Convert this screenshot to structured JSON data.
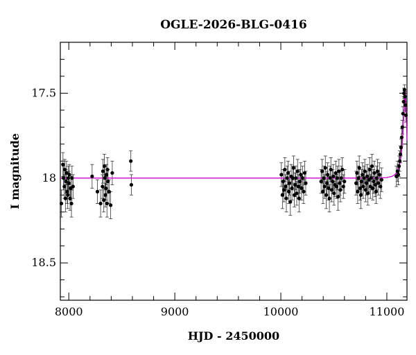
{
  "chart_data": {
    "type": "scatter",
    "title": "OGLE-2026-BLG-0416",
    "xlabel": "HJD - 2450000",
    "ylabel": "I magnitude",
    "xlim": [
      7920,
      11190
    ],
    "ylim": [
      18.72,
      17.2
    ],
    "y_inverted": true,
    "x_ticks": [
      8000,
      9000,
      10000,
      11000
    ],
    "x_tick_labels": [
      "8000",
      "9000",
      "10000",
      "11000"
    ],
    "y_ticks": [
      17.5,
      18,
      18.5
    ],
    "y_tick_labels": [
      "17.5",
      "18",
      "18.5"
    ],
    "grid": false,
    "colors": {
      "data": "#000000",
      "errorbar": "#333333",
      "model": "#cc00cc"
    },
    "series": [
      {
        "kind": "points_with_errors",
        "points": [
          [
            7930,
            18.15,
            0.08
          ],
          [
            7945,
            17.92,
            0.07
          ],
          [
            7950,
            18.0,
            0.07
          ],
          [
            7958,
            18.05,
            0.07
          ],
          [
            7962,
            17.95,
            0.06
          ],
          [
            7968,
            18.12,
            0.08
          ],
          [
            7972,
            18.02,
            0.07
          ],
          [
            7978,
            17.97,
            0.07
          ],
          [
            7985,
            18.08,
            0.07
          ],
          [
            7990,
            18.1,
            0.08
          ],
          [
            7995,
            18.0,
            0.07
          ],
          [
            8000,
            18.03,
            0.07
          ],
          [
            8005,
            17.98,
            0.06
          ],
          [
            8012,
            18.12,
            0.07
          ],
          [
            8018,
            18.06,
            0.07
          ],
          [
            8025,
            18.15,
            0.08
          ],
          [
            8030,
            18.0,
            0.07
          ],
          [
            8040,
            18.05,
            0.07
          ],
          [
            8220,
            17.99,
            0.07
          ],
          [
            8270,
            18.08,
            0.07
          ],
          [
            8300,
            18.15,
            0.08
          ],
          [
            8318,
            18.05,
            0.07
          ],
          [
            8322,
            17.96,
            0.07
          ],
          [
            8330,
            18.13,
            0.07
          ],
          [
            8335,
            17.93,
            0.07
          ],
          [
            8340,
            18.0,
            0.07
          ],
          [
            8345,
            18.1,
            0.07
          ],
          [
            8350,
            18.06,
            0.07
          ],
          [
            8355,
            17.98,
            0.06
          ],
          [
            8360,
            18.15,
            0.08
          ],
          [
            8365,
            17.95,
            0.07
          ],
          [
            8370,
            18.02,
            0.07
          ],
          [
            8380,
            18.08,
            0.07
          ],
          [
            8395,
            18.16,
            0.08
          ],
          [
            8410,
            17.97,
            0.07
          ],
          [
            8585,
            17.9,
            0.06
          ],
          [
            8590,
            18.04,
            0.06
          ],
          [
            10005,
            17.98,
            0.07
          ],
          [
            10015,
            18.1,
            0.08
          ],
          [
            10022,
            18.02,
            0.07
          ],
          [
            10030,
            18.07,
            0.07
          ],
          [
            10038,
            17.95,
            0.07
          ],
          [
            10045,
            18.05,
            0.07
          ],
          [
            10052,
            18.12,
            0.08
          ],
          [
            10060,
            18.0,
            0.07
          ],
          [
            10068,
            17.97,
            0.07
          ],
          [
            10075,
            18.08,
            0.07
          ],
          [
            10082,
            18.03,
            0.07
          ],
          [
            10090,
            18.14,
            0.08
          ],
          [
            10098,
            17.99,
            0.07
          ],
          [
            10105,
            18.06,
            0.07
          ],
          [
            10112,
            18.0,
            0.07
          ],
          [
            10120,
            17.94,
            0.07
          ],
          [
            10128,
            18.1,
            0.07
          ],
          [
            10135,
            18.04,
            0.07
          ],
          [
            10142,
            18.0,
            0.07
          ],
          [
            10150,
            18.09,
            0.07
          ],
          [
            10158,
            17.96,
            0.07
          ],
          [
            10165,
            18.05,
            0.07
          ],
          [
            10172,
            18.12,
            0.08
          ],
          [
            10180,
            18.02,
            0.07
          ],
          [
            10188,
            17.98,
            0.07
          ],
          [
            10195,
            18.06,
            0.07
          ],
          [
            10205,
            18.0,
            0.07
          ],
          [
            10215,
            18.08,
            0.07
          ],
          [
            10225,
            17.97,
            0.07
          ],
          [
            10235,
            18.03,
            0.07
          ],
          [
            10380,
            18.02,
            0.07
          ],
          [
            10390,
            17.96,
            0.07
          ],
          [
            10398,
            18.08,
            0.07
          ],
          [
            10405,
            18.0,
            0.07
          ],
          [
            10412,
            18.05,
            0.07
          ],
          [
            10420,
            17.94,
            0.07
          ],
          [
            10428,
            18.1,
            0.08
          ],
          [
            10435,
            18.03,
            0.07
          ],
          [
            10442,
            17.98,
            0.07
          ],
          [
            10450,
            18.06,
            0.07
          ],
          [
            10458,
            18.12,
            0.08
          ],
          [
            10465,
            18.0,
            0.07
          ],
          [
            10472,
            17.95,
            0.07
          ],
          [
            10480,
            18.07,
            0.07
          ],
          [
            10488,
            18.02,
            0.07
          ],
          [
            10495,
            17.99,
            0.07
          ],
          [
            10502,
            18.09,
            0.07
          ],
          [
            10510,
            18.04,
            0.07
          ],
          [
            10518,
            17.97,
            0.07
          ],
          [
            10525,
            18.05,
            0.07
          ],
          [
            10532,
            18.0,
            0.07
          ],
          [
            10540,
            18.11,
            0.08
          ],
          [
            10548,
            17.96,
            0.07
          ],
          [
            10555,
            18.03,
            0.07
          ],
          [
            10562,
            18.07,
            0.07
          ],
          [
            10570,
            18.0,
            0.07
          ],
          [
            10580,
            17.95,
            0.07
          ],
          [
            10590,
            18.05,
            0.07
          ],
          [
            10600,
            18.02,
            0.07
          ],
          [
            10710,
            18.03,
            0.07
          ],
          [
            10718,
            17.97,
            0.07
          ],
          [
            10725,
            18.08,
            0.07
          ],
          [
            10732,
            18.0,
            0.07
          ],
          [
            10740,
            17.94,
            0.07
          ],
          [
            10748,
            18.06,
            0.07
          ],
          [
            10755,
            18.1,
            0.08
          ],
          [
            10762,
            18.02,
            0.07
          ],
          [
            10770,
            17.98,
            0.07
          ],
          [
            10778,
            18.05,
            0.07
          ],
          [
            10785,
            18.0,
            0.07
          ],
          [
            10792,
            17.96,
            0.07
          ],
          [
            10800,
            18.07,
            0.07
          ],
          [
            10808,
            18.03,
            0.07
          ],
          [
            10815,
            17.99,
            0.07
          ],
          [
            10822,
            18.09,
            0.07
          ],
          [
            10830,
            18.01,
            0.07
          ],
          [
            10838,
            17.95,
            0.07
          ],
          [
            10845,
            18.05,
            0.07
          ],
          [
            10852,
            18.0,
            0.07
          ],
          [
            10860,
            17.93,
            0.07
          ],
          [
            10868,
            18.06,
            0.07
          ],
          [
            10875,
            18.02,
            0.07
          ],
          [
            10882,
            17.97,
            0.07
          ],
          [
            10890,
            18.04,
            0.07
          ],
          [
            10898,
            18.08,
            0.07
          ],
          [
            10905,
            18.0,
            0.07
          ],
          [
            10912,
            17.96,
            0.07
          ],
          [
            10920,
            18.03,
            0.07
          ],
          [
            10930,
            17.98,
            0.07
          ],
          [
            10940,
            18.05,
            0.07
          ],
          [
            10950,
            18.01,
            0.07
          ],
          [
            11090,
            17.99,
            0.06
          ],
          [
            11100,
            17.96,
            0.06
          ],
          [
            11108,
            17.98,
            0.06
          ],
          [
            11115,
            17.93,
            0.06
          ],
          [
            11122,
            17.9,
            0.06
          ],
          [
            11128,
            17.86,
            0.05
          ],
          [
            11134,
            17.82,
            0.05
          ],
          [
            11140,
            17.76,
            0.05
          ],
          [
            11146,
            17.7,
            0.04
          ],
          [
            11152,
            17.62,
            0.04
          ],
          [
            11158,
            17.55,
            0.03
          ],
          [
            11162,
            17.5,
            0.03
          ],
          [
            11166,
            17.48,
            0.03
          ],
          [
            11170,
            17.52,
            0.03
          ],
          [
            11175,
            17.57,
            0.04
          ],
          [
            11180,
            17.63,
            0.04
          ]
        ]
      },
      {
        "kind": "model_curve",
        "x": [
          7920,
          8500,
          9500,
          10500,
          10900,
          11000,
          11050,
          11080,
          11100,
          11110,
          11120,
          11130,
          11140,
          11150,
          11160,
          11165,
          11170,
          11175,
          11180,
          11185,
          11190
        ],
        "y": [
          18.0,
          18.0,
          18.0,
          18.0,
          18.0,
          17.997,
          17.99,
          17.978,
          17.96,
          17.945,
          17.925,
          17.89,
          17.84,
          17.76,
          17.64,
          17.57,
          17.5,
          17.48,
          17.55,
          17.66,
          17.78
        ]
      }
    ]
  }
}
